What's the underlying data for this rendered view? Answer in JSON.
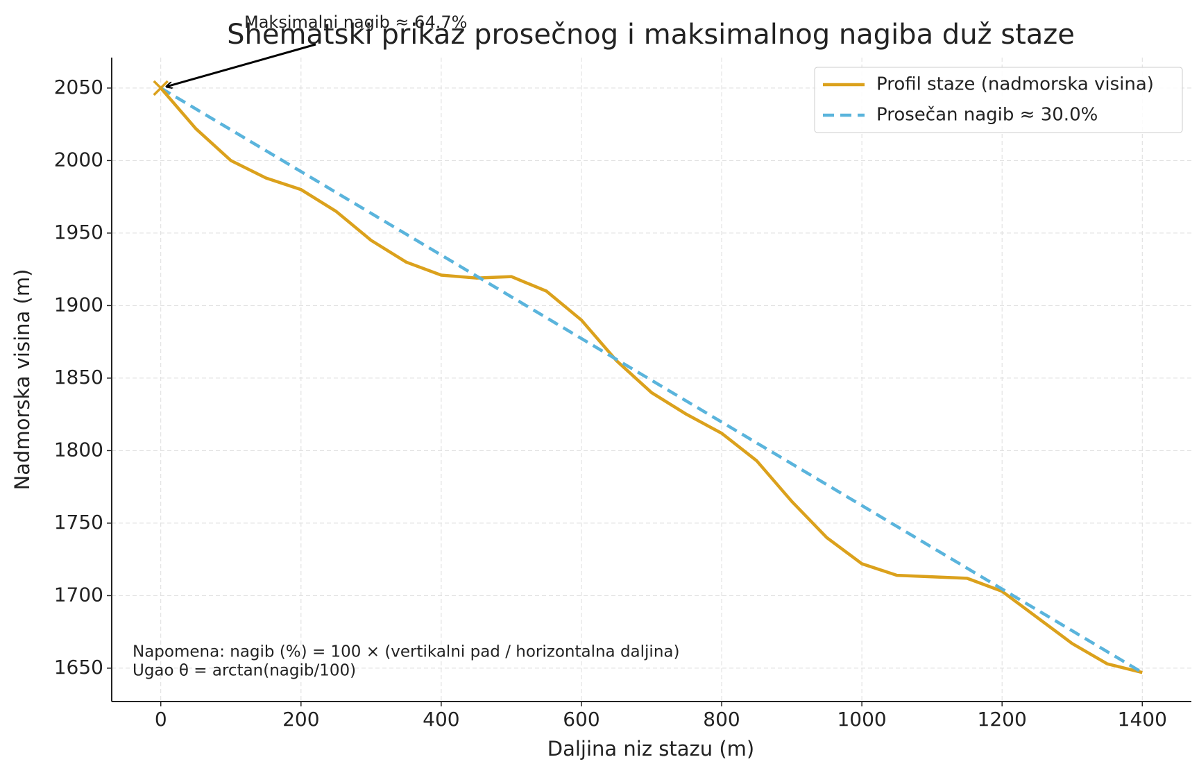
{
  "chart_data": {
    "type": "line",
    "title": "Shematski prikaz prosečnog i maksimalnog nagiba duž staze",
    "xlabel": "Daljina niz stazu (m)",
    "ylabel": "Nadmorska visina (m)",
    "series": [
      {
        "name": "Profil staze (nadmorska visina)",
        "color": "#dba11c",
        "style": "solid",
        "x": [
          0,
          50,
          100,
          150,
          200,
          250,
          300,
          350,
          400,
          450,
          500,
          550,
          600,
          650,
          700,
          750,
          800,
          850,
          900,
          950,
          1000,
          1050,
          1100,
          1150,
          1200,
          1250,
          1300,
          1350,
          1400
        ],
        "values": [
          2050,
          2022,
          2000,
          1988,
          1980,
          1965,
          1945,
          1930,
          1921,
          1919,
          1920,
          1910,
          1890,
          1862,
          1840,
          1825,
          1812,
          1793,
          1765,
          1740,
          1722,
          1714,
          1713,
          1712,
          1703,
          1685,
          1667,
          1653,
          1647
        ]
      },
      {
        "name": "Prosečan nagib ≈ 30.0%",
        "color": "#5ab4dc",
        "style": "dashed",
        "x": [
          0,
          1400
        ],
        "values": [
          2050,
          1647
        ]
      }
    ],
    "marker": {
      "x": 0,
      "y": 2050,
      "color": "#dba11c"
    },
    "annotation": {
      "text": "Maksimalni nagib ≈ 64.7%",
      "x": 0,
      "y": 2050
    },
    "note": [
      "Napomena: nagib (%) = 100 × (vertikalni pad / horizontalna daljina)",
      "Ugao θ = arctan(nagib/100)"
    ],
    "xlim": [
      -70,
      1470
    ],
    "ylim": [
      1627,
      2071
    ],
    "xticks": [
      0,
      200,
      400,
      600,
      800,
      1000,
      1200,
      1400
    ],
    "yticks": [
      1650,
      1700,
      1750,
      1800,
      1850,
      1900,
      1950,
      2000,
      2050
    ],
    "grid": true,
    "legend": "upper right"
  }
}
